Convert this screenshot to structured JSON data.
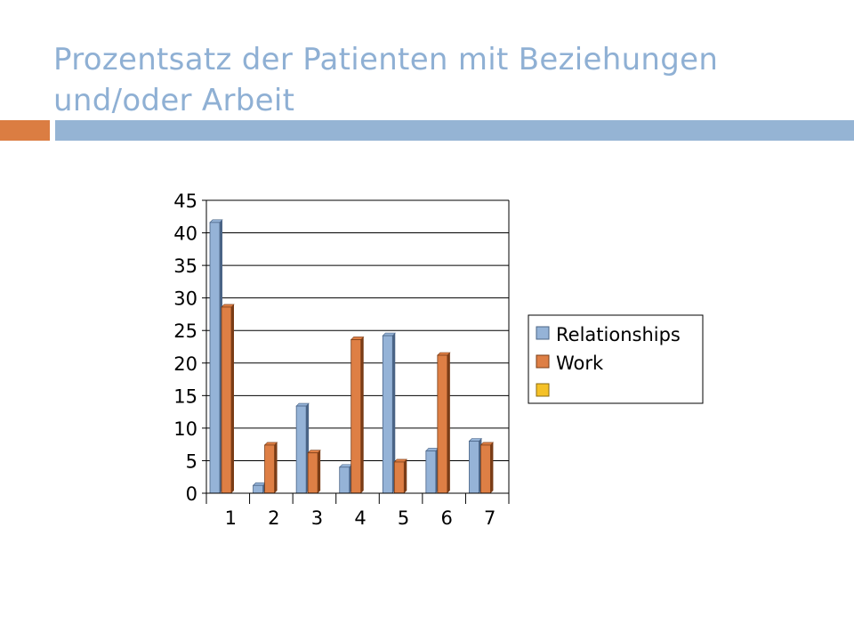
{
  "slide": {
    "title": "Prozentsatz der Patienten mit Beziehungen und/oder Arbeit"
  },
  "colors": {
    "title": "#8FB0D4",
    "accent_left": "#DB7D42",
    "accent_right": "#95B4D4",
    "relationships": "#95B3D7",
    "relationships_dark": "#4A6486",
    "work": "#DE7F45",
    "work_dark": "#7A3C16",
    "third_series": "#F5C127",
    "gridline": "#000000"
  },
  "chart_data": {
    "type": "bar",
    "title": "",
    "xlabel": "",
    "ylabel": "",
    "categories": [
      "1",
      "2",
      "3",
      "4",
      "5",
      "6",
      "7"
    ],
    "ylim": [
      0,
      45
    ],
    "yticks": [
      "0",
      "5",
      "10",
      "15",
      "20",
      "25",
      "30",
      "35",
      "40",
      "45"
    ],
    "grid": true,
    "legend_position": "right",
    "series": [
      {
        "name": "Relationships",
        "values": [
          41.6,
          1.2,
          13.4,
          4.0,
          24.2,
          6.5,
          8.0
        ]
      },
      {
        "name": "Work",
        "values": [
          28.6,
          7.4,
          6.2,
          23.6,
          4.8,
          21.2,
          7.4
        ]
      },
      {
        "name": "",
        "values": [
          0,
          0,
          0,
          0,
          0,
          0,
          0
        ]
      }
    ]
  }
}
